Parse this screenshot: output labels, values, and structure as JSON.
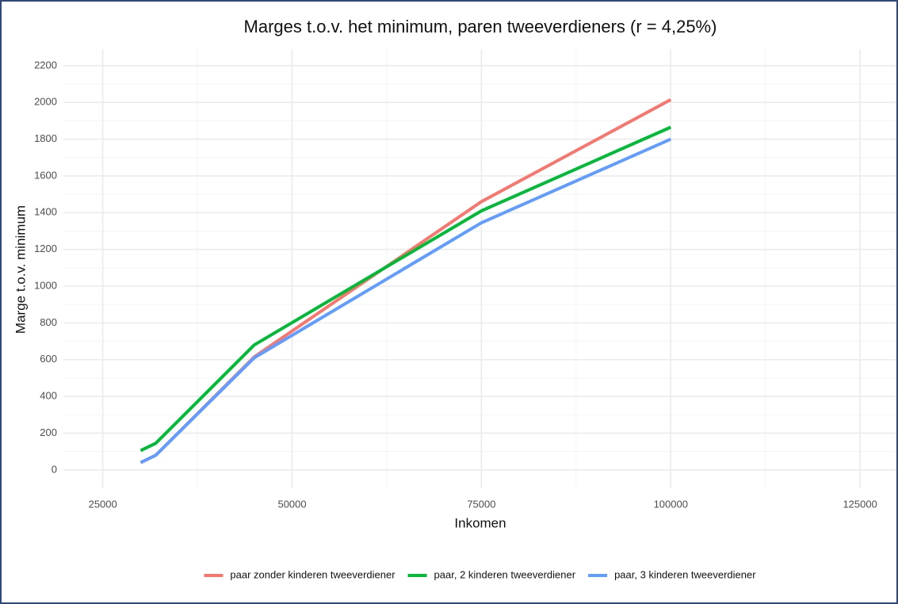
{
  "chart_data": {
    "type": "line",
    "title": "Marges t.o.v. het minimum, paren tweeverdieners (r = 4,25%)",
    "x_label": "Inkomen",
    "y_label": "Marge t.o.v. minimum",
    "x": [
      30000,
      32000,
      45000,
      75000,
      100000
    ],
    "series": [
      {
        "name": "paar zonder kinderen tweeverdiener",
        "color": "#F8766D",
        "values": [
          40,
          80,
          615,
          1460,
          2015
        ]
      },
      {
        "name": "paar, 2 kinderen tweeverdiener",
        "color": "#00BA38",
        "values": [
          105,
          145,
          680,
          1410,
          1865
        ]
      },
      {
        "name": "paar, 3 kinderen tweeverdiener",
        "color": "#619CFF",
        "values": [
          40,
          80,
          610,
          1345,
          1800
        ]
      }
    ],
    "xlim": [
      19800,
      129800
    ],
    "xticks": [
      25000,
      50000,
      75000,
      100000,
      125000
    ],
    "ylim": [
      -100,
      2290
    ],
    "yticks": [
      0,
      200,
      400,
      600,
      800,
      1000,
      1200,
      1400,
      1600,
      1800,
      2000,
      2200
    ],
    "grid": true,
    "legend": "bottom"
  }
}
